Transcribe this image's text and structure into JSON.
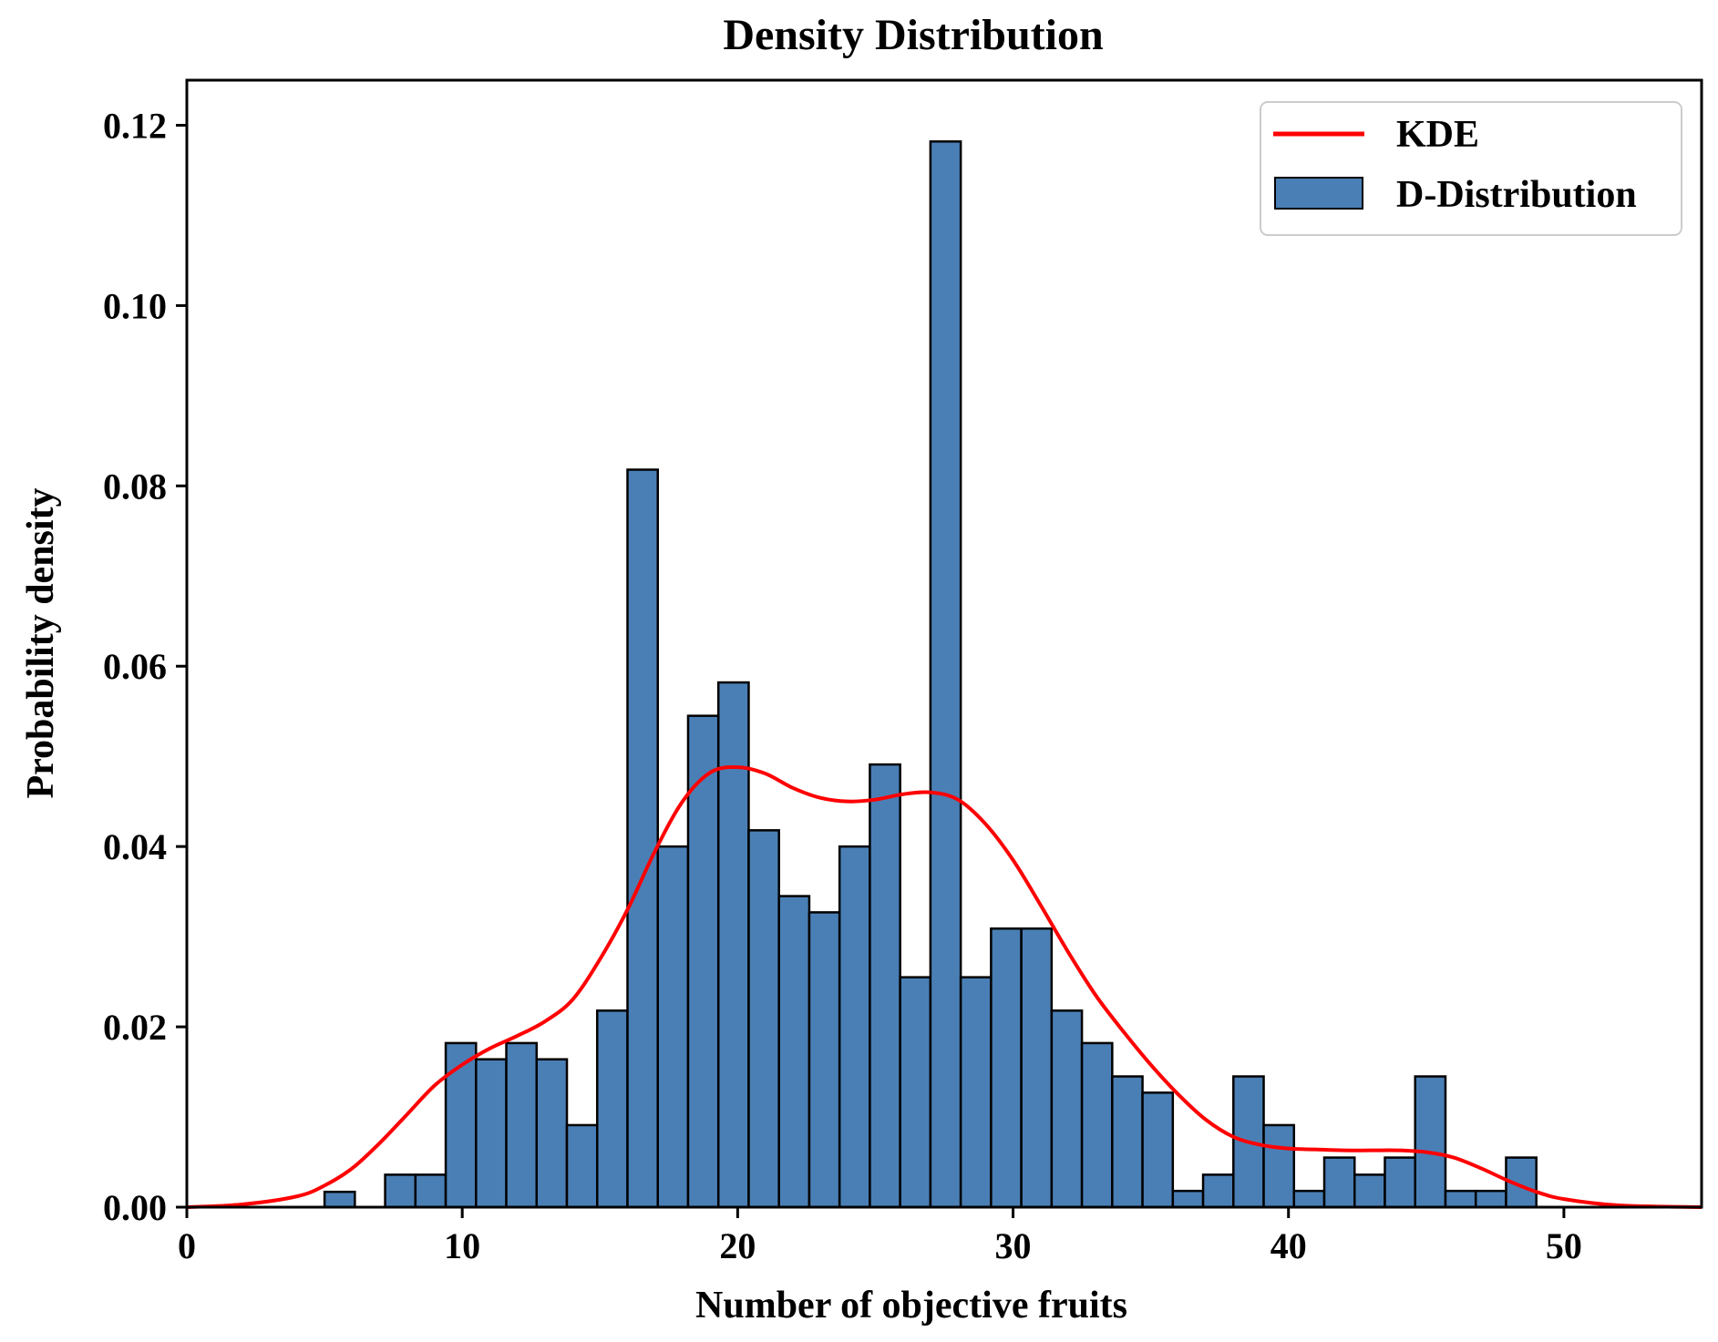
{
  "chart_data": {
    "type": "bar",
    "title": "Density Distribution",
    "xlabel": "Number of objective fruits",
    "ylabel": "Probability density",
    "xlim": [
      0,
      55
    ],
    "ylim": [
      0,
      0.125
    ],
    "xticks": [
      0,
      10,
      20,
      30,
      40,
      50
    ],
    "xtick_labels": [
      "0",
      "10",
      "20",
      "30",
      "40",
      "50"
    ],
    "yticks": [
      0,
      0.02,
      0.04,
      0.06,
      0.08,
      0.1,
      0.12
    ],
    "ytick_labels": [
      "0.00",
      "0.02",
      "0.04",
      "0.06",
      "0.08",
      "0.10",
      "0.12"
    ],
    "grid": false,
    "legend_position": "top-right",
    "bin_edges": [
      5.0,
      6.1,
      7.2,
      8.3,
      9.4,
      10.5,
      11.6,
      12.7,
      13.8,
      14.9,
      16.0,
      17.1,
      18.2,
      19.3,
      20.4,
      21.5,
      22.6,
      23.7,
      24.8,
      25.9,
      27.0,
      28.1,
      29.2,
      30.3,
      31.4,
      32.5,
      33.6,
      34.7,
      35.8,
      36.9,
      38.0,
      39.1,
      40.2,
      41.3,
      42.4,
      43.5,
      44.6,
      45.7,
      46.8,
      47.9,
      49.0
    ],
    "series": [
      {
        "name": "D-Distribution",
        "kind": "histogram",
        "color": "#4a7fb5",
        "edge_color": "#000000",
        "values": [
          0.0017,
          0.0,
          0.0036,
          0.0036,
          0.0182,
          0.0164,
          0.0182,
          0.0164,
          0.0091,
          0.0218,
          0.0818,
          0.04,
          0.0545,
          0.0582,
          0.0418,
          0.0345,
          0.0327,
          0.04,
          0.0491,
          0.0255,
          0.1182,
          0.0255,
          0.0309,
          0.0309,
          0.0218,
          0.0182,
          0.0145,
          0.0127,
          0.0018,
          0.0036,
          0.0145,
          0.0091,
          0.0018,
          0.0055,
          0.0036,
          0.0055,
          0.0145,
          0.0018,
          0.0018,
          0.0055
        ]
      },
      {
        "name": "KDE",
        "kind": "line",
        "color": "#ff0000",
        "x": [
          0,
          2,
          4,
          5,
          6,
          7,
          8,
          9,
          10,
          11,
          12,
          13,
          14,
          15,
          16,
          17,
          18,
          19,
          20,
          21,
          22,
          23,
          24,
          25,
          26,
          27,
          28,
          29,
          30,
          31,
          32,
          33,
          34,
          35,
          36,
          37,
          38,
          39,
          40,
          41,
          42,
          43,
          44,
          45,
          46,
          47,
          48,
          49,
          50,
          52,
          55
        ],
        "y": [
          0.0,
          0.0003,
          0.0012,
          0.0024,
          0.0043,
          0.0071,
          0.0103,
          0.0135,
          0.0158,
          0.0176,
          0.019,
          0.0206,
          0.023,
          0.0275,
          0.033,
          0.0395,
          0.045,
          0.0482,
          0.0488,
          0.0481,
          0.0465,
          0.0454,
          0.045,
          0.0452,
          0.0458,
          0.046,
          0.0452,
          0.0425,
          0.0385,
          0.0335,
          0.0283,
          0.0235,
          0.0195,
          0.0158,
          0.0125,
          0.0097,
          0.0078,
          0.0069,
          0.0065,
          0.0064,
          0.0063,
          0.0063,
          0.0063,
          0.0061,
          0.0055,
          0.0043,
          0.0029,
          0.0017,
          0.0009,
          0.0002,
          0.0
        ]
      }
    ],
    "legend": [
      "KDE",
      "D-Distribution"
    ]
  }
}
